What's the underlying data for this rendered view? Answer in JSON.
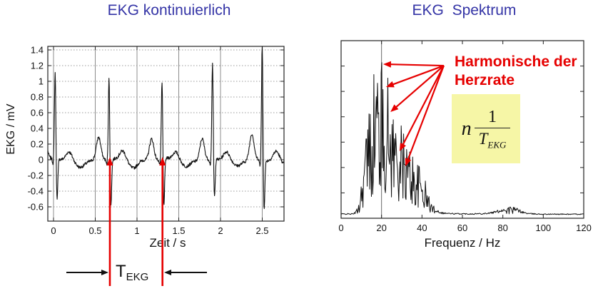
{
  "colors": {
    "title_blue": "#3434A6",
    "annotation_red": "#E60000",
    "formula_background": "#F6F6A6",
    "grid_gray": "#8C8C8C",
    "grid_dotted_gray": "#9A9A9A",
    "axis_black": "#222222",
    "trace_black": "#111111"
  },
  "left_panel": {
    "title": "EKG kontinuierlich",
    "t_ekg_label": {
      "base": "T",
      "sub": "EKG"
    }
  },
  "right_panel": {
    "title": "EKG  Spektrum",
    "harmonics_label_line1": "Harmonische der",
    "harmonics_label_line2": "Herzrate",
    "formula": {
      "factor": "n",
      "numerator": "1",
      "denominator_base": "T",
      "denominator_sub": "EKG"
    }
  },
  "chart_data": [
    {
      "type": "line",
      "title": "EKG kontinuierlich",
      "xlabel": "Zeit / s",
      "ylabel": "EKG / mV",
      "xlim": [
        -0.07,
        2.76
      ],
      "ylim": [
        -0.78,
        1.45
      ],
      "xticks": [
        "0",
        "0.5",
        "1",
        "1.5",
        "2",
        "2.5"
      ],
      "yticks": [
        "-0.6",
        "-0.4",
        "-0.2",
        "0",
        "0.2",
        "0.4",
        "0.6",
        "0.8",
        "1",
        "1.2",
        "1.4"
      ],
      "grid": true,
      "beats": {
        "r_times_s": [
          0.02,
          0.665,
          1.3,
          1.905,
          2.5
        ],
        "r_amplitudes_mV": [
          1.07,
          1.01,
          0.95,
          1.19,
          1.45
        ],
        "s_depths_mV": [
          -0.55,
          -0.62,
          -0.62,
          -0.52,
          -0.66
        ],
        "p_amplitudes_mV": [
          0.27,
          0.28,
          0.28,
          0.29,
          0.34
        ],
        "t_amplitude_mV": 0.1
      },
      "marked_beat_times_s": [
        0.675,
        1.305
      ]
    },
    {
      "type": "line",
      "title": "EKG Spektrum",
      "xlabel": "Frequenz / Hz",
      "xlim": [
        0,
        120
      ],
      "xticks": [
        "0",
        "20",
        "40",
        "60",
        "80",
        "100",
        "120"
      ],
      "y_axis_unlabeled_tick_intervals": 7,
      "gridline_hz": 20,
      "envelope_rel": [
        [
          0,
          0.012
        ],
        [
          6,
          0.012
        ],
        [
          7.5,
          0.03
        ],
        [
          9,
          0.1
        ],
        [
          10.5,
          0.28
        ],
        [
          12,
          0.48
        ],
        [
          13.5,
          0.6
        ],
        [
          15,
          0.72
        ],
        [
          16.5,
          0.88
        ],
        [
          18,
          0.92
        ],
        [
          19.5,
          0.9
        ],
        [
          21,
          0.86
        ],
        [
          22.5,
          0.82
        ],
        [
          24,
          0.72
        ],
        [
          25.5,
          0.66
        ],
        [
          27,
          0.6
        ],
        [
          28.5,
          0.56
        ],
        [
          30,
          0.5
        ],
        [
          31.5,
          0.47
        ],
        [
          33,
          0.43
        ],
        [
          34.5,
          0.4
        ],
        [
          36,
          0.34
        ],
        [
          37.5,
          0.3
        ],
        [
          39,
          0.29
        ],
        [
          40.5,
          0.26
        ],
        [
          42,
          0.18
        ],
        [
          43.5,
          0.12
        ],
        [
          45,
          0.07
        ],
        [
          47,
          0.04
        ],
        [
          50,
          0.02
        ],
        [
          55,
          0.014
        ],
        [
          60,
          0.013
        ],
        [
          65,
          0.013
        ],
        [
          70,
          0.015
        ],
        [
          74,
          0.02
        ],
        [
          78,
          0.035
        ],
        [
          81,
          0.05
        ],
        [
          84,
          0.055
        ],
        [
          87,
          0.045
        ],
        [
          90,
          0.025
        ],
        [
          93,
          0.014
        ],
        [
          100,
          0.01
        ],
        [
          110,
          0.01
        ],
        [
          120,
          0.01
        ]
      ],
      "arrow_origin": [
        50.8,
        0.905
      ],
      "harmonic_arrow_targets": [
        [
          20.8,
          0.914
        ],
        [
          22.2,
          0.776
        ],
        [
          24.4,
          0.625
        ],
        [
          28.9,
          0.388
        ],
        [
          31.8,
          0.297
        ]
      ]
    }
  ]
}
